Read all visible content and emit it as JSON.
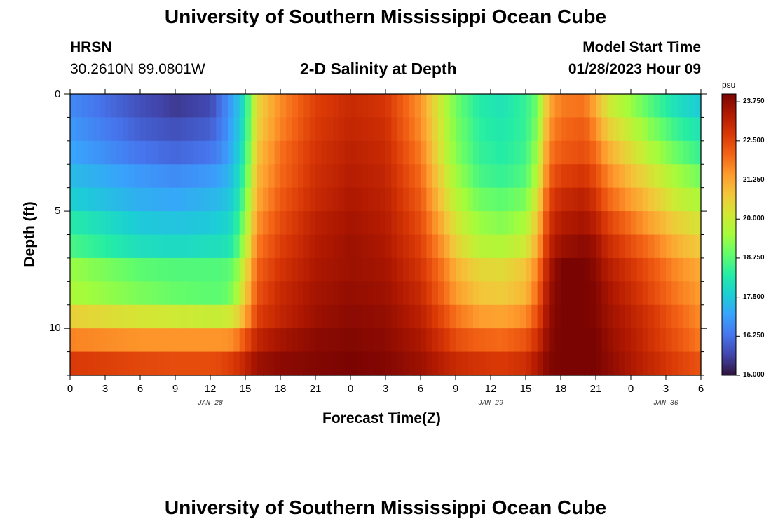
{
  "header": {
    "title": "University of Southern Mississippi Ocean Cube",
    "station": "HRSN",
    "coords": "30.2610N  89.0801W",
    "subtitle": "2-D Salinity at Depth",
    "model_label": "Model Start Time",
    "model_time": "01/28/2023 Hour 09"
  },
  "footer": {
    "title": "University of Southern Mississippi Ocean Cube"
  },
  "colors": {
    "scale": [
      "#30123b",
      "#4145ab",
      "#4675ed",
      "#39a2fc",
      "#1bcfd4",
      "#24eca6",
      "#61fc6c",
      "#a4fc3b",
      "#d1e834",
      "#f3c63a",
      "#fe9b2d",
      "#f36315",
      "#d93806",
      "#b11901",
      "#7a0402"
    ]
  },
  "chart_data": {
    "type": "heatmap",
    "title": "2-D Salinity at Depth",
    "xlabel": "Forecast Time(Z)",
    "ylabel": "Depth (ft)",
    "x_range_hours": [
      0,
      54
    ],
    "y_range_ft": [
      0,
      12
    ],
    "x_tick_labels": [
      "0",
      "3",
      "6",
      "9",
      "12",
      "15",
      "18",
      "21",
      "0",
      "3",
      "6",
      "9",
      "12",
      "15",
      "18",
      "21",
      "0",
      "3",
      "6"
    ],
    "y_ticks": [
      0,
      5,
      10
    ],
    "y_tick_labels": [
      "0",
      "5",
      "10"
    ],
    "date_labels": [
      {
        "text": "JAN 28",
        "hour": 12
      },
      {
        "text": "JAN 29",
        "hour": 36
      },
      {
        "text": "JAN 30",
        "hour": 51
      }
    ],
    "colorbar": {
      "unit": "psu",
      "min": 15.0,
      "max": 24.0,
      "ticks": [
        "23.750",
        "22.500",
        "21.250",
        "20.000",
        "18.750",
        "17.500",
        "16.250",
        "15.000"
      ],
      "tick_values": [
        23.75,
        22.5,
        21.25,
        20.0,
        18.75,
        17.5,
        16.25,
        15.0
      ]
    },
    "depth_levels": [
      0.5,
      1.5,
      2.5,
      3.5,
      4.5,
      5.5,
      6.5,
      7.5,
      8.5,
      9.5,
      10.5,
      11.5
    ],
    "time_series_hours": [
      0,
      6,
      9,
      12,
      13,
      14,
      15,
      16,
      18,
      21,
      24,
      27,
      30,
      32,
      33,
      35,
      37,
      39,
      40,
      41,
      42,
      44,
      45,
      46,
      48,
      50,
      52,
      54
    ],
    "salinity_psu": [
      [
        16.6,
        15.8,
        15.5,
        15.7,
        16.3,
        17.0,
        18.0,
        20.5,
        21.6,
        22.6,
        23.0,
        22.8,
        21.5,
        19.8,
        19.0,
        18.2,
        18.0,
        18.4,
        19.0,
        21.2,
        21.8,
        21.9,
        21.2,
        20.2,
        19.4,
        18.6,
        17.9,
        17.5
      ],
      [
        16.8,
        16.0,
        15.8,
        16.0,
        16.4,
        17.1,
        18.1,
        20.6,
        21.7,
        22.7,
        23.1,
        22.9,
        21.6,
        19.9,
        19.1,
        18.3,
        18.1,
        18.4,
        19.2,
        21.5,
        22.0,
        22.2,
        21.6,
        20.7,
        19.9,
        19.1,
        18.4,
        18.0
      ],
      [
        17.0,
        16.3,
        16.1,
        16.3,
        16.6,
        17.2,
        18.3,
        20.8,
        21.9,
        22.8,
        23.2,
        23.0,
        21.8,
        20.0,
        19.2,
        18.4,
        18.2,
        18.5,
        19.5,
        21.8,
        22.2,
        22.4,
        22.0,
        21.2,
        20.4,
        19.6,
        18.9,
        18.4
      ],
      [
        17.3,
        16.8,
        16.6,
        16.8,
        17.0,
        17.4,
        18.6,
        21.0,
        22.0,
        22.9,
        23.3,
        23.1,
        22.0,
        20.3,
        19.5,
        18.6,
        18.4,
        18.7,
        19.8,
        22.1,
        22.6,
        22.8,
        22.4,
        21.7,
        20.9,
        20.2,
        19.5,
        19.0
      ],
      [
        17.6,
        17.1,
        17.0,
        17.2,
        17.3,
        17.6,
        18.9,
        21.2,
        22.2,
        23.0,
        23.4,
        23.2,
        22.2,
        20.6,
        19.8,
        19.0,
        18.8,
        19.1,
        20.3,
        22.5,
        23.0,
        23.2,
        22.8,
        22.1,
        21.4,
        20.7,
        20.0,
        19.6
      ],
      [
        18.2,
        17.5,
        17.4,
        17.5,
        17.6,
        17.9,
        19.3,
        21.5,
        22.4,
        23.2,
        23.5,
        23.3,
        22.4,
        21.0,
        20.2,
        19.4,
        19.2,
        19.6,
        20.8,
        22.8,
        23.3,
        23.5,
        23.2,
        22.6,
        21.9,
        21.2,
        20.6,
        20.2
      ],
      [
        18.6,
        17.9,
        17.8,
        17.9,
        17.9,
        18.2,
        19.7,
        21.8,
        22.6,
        23.3,
        23.6,
        23.4,
        22.6,
        21.4,
        20.6,
        19.8,
        19.7,
        20.1,
        21.2,
        23.1,
        23.6,
        23.8,
        23.6,
        23.0,
        22.4,
        21.8,
        21.1,
        20.7
      ],
      [
        19.4,
        18.8,
        18.7,
        18.7,
        18.7,
        18.9,
        20.3,
        22.1,
        22.8,
        23.4,
        23.6,
        23.5,
        22.8,
        21.8,
        21.1,
        20.5,
        20.4,
        20.8,
        21.7,
        23.4,
        24.0,
        24.0,
        23.8,
        23.3,
        22.8,
        22.2,
        21.6,
        21.2
      ],
      [
        19.6,
        19.1,
        18.9,
        18.8,
        18.8,
        19.2,
        20.6,
        22.3,
        23.0,
        23.5,
        23.7,
        23.6,
        23.0,
        22.0,
        21.4,
        20.8,
        20.7,
        21.0,
        22.0,
        23.6,
        24.0,
        24.0,
        23.9,
        23.5,
        23.0,
        22.4,
        21.8,
        21.4
      ],
      [
        20.6,
        20.2,
        20.1,
        20.0,
        20.0,
        20.2,
        21.2,
        22.6,
        23.1,
        23.6,
        23.8,
        23.7,
        23.2,
        22.4,
        21.9,
        21.4,
        21.3,
        21.6,
        22.4,
        23.7,
        24.0,
        24.0,
        23.9,
        23.6,
        23.2,
        22.7,
        22.1,
        21.6
      ],
      [
        21.7,
        21.5,
        21.5,
        21.5,
        21.5,
        21.6,
        22.3,
        23.1,
        23.5,
        23.8,
        23.9,
        23.8,
        23.4,
        22.8,
        22.4,
        22.1,
        22.0,
        22.3,
        22.9,
        23.8,
        24.0,
        24.0,
        24.0,
        23.7,
        23.3,
        22.8,
        22.3,
        21.8
      ],
      [
        22.7,
        22.5,
        22.4,
        22.4,
        22.5,
        22.7,
        23.1,
        23.6,
        23.8,
        23.9,
        24.0,
        23.9,
        23.6,
        23.2,
        23.0,
        22.8,
        22.7,
        22.9,
        23.4,
        23.9,
        24.0,
        24.0,
        24.0,
        23.8,
        23.4,
        23.0,
        22.6,
        22.3
      ]
    ]
  }
}
